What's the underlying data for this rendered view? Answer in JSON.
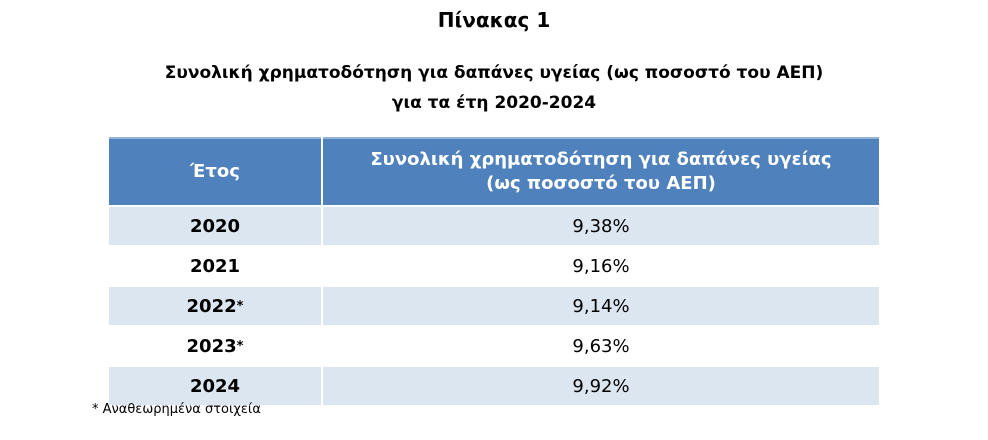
{
  "title": "Πίνακας 1",
  "subtitle": [
    "Συνολική χρηματοδότηση για δαπάνες υγείας (ως ποσοστό του ΑΕΠ)",
    "για τα έτη 2020-2024"
  ],
  "table": {
    "header": [
      "Έτος",
      [
        "Συνολική χρηματοδότηση για δαπάνες υγείας",
        "(ως ποσοστό του ΑΕΠ)"
      ]
    ],
    "rows": [
      {
        "year": "2020",
        "value": "9,38%"
      },
      {
        "year": "2021",
        "value": "9,16%"
      },
      {
        "year": "2022",
        "note": "*",
        "value": "9,14%"
      },
      {
        "year": "2023",
        "note": "*",
        "value": "9,63%"
      },
      {
        "year": "2024",
        "value": "9,92%"
      }
    ]
  },
  "footnote": "* Αναθεωρημένα στοιχεία"
}
